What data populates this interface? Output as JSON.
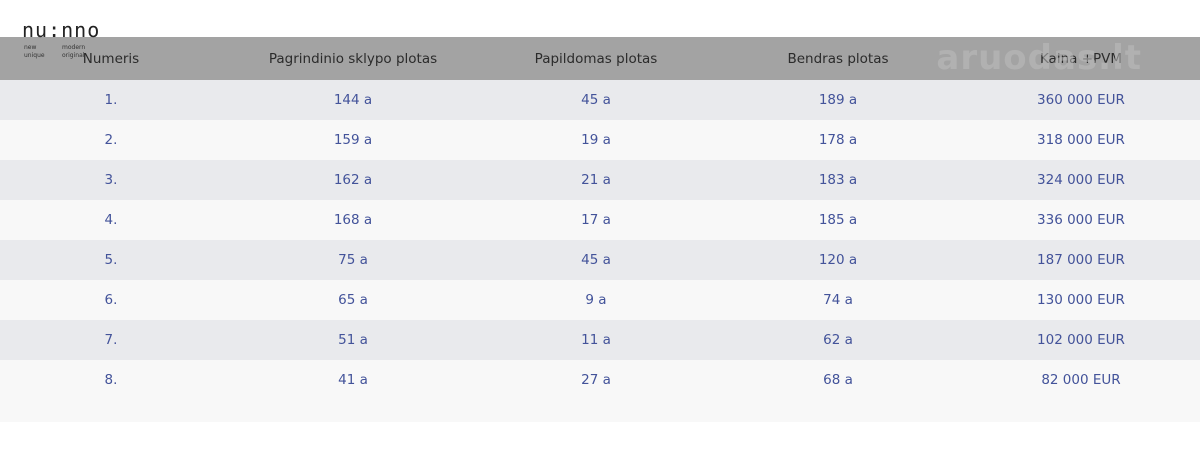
{
  "logo": {
    "mark": "nu:nno",
    "words": [
      "new",
      "unique",
      "modern",
      "original"
    ]
  },
  "watermark": "aruodas.lt",
  "table": {
    "header": [
      "Numeris",
      "Pagrindinio sklypo plotas",
      "Papildomas plotas",
      "Bendras plotas",
      "Kaina +PVM"
    ],
    "rows": [
      [
        "1.",
        "144 a",
        "45 a",
        "189 a",
        "360 000 EUR"
      ],
      [
        "2.",
        "159 a",
        "19 a",
        "178 a",
        "318 000 EUR"
      ],
      [
        "3.",
        "162 a",
        "21 a",
        "183 a",
        "324 000 EUR"
      ],
      [
        "4.",
        "168 a",
        "17 a",
        "185 a",
        "336 000 EUR"
      ],
      [
        "5.",
        "75 a",
        "45 a",
        "120 a",
        "187 000 EUR"
      ],
      [
        "6.",
        "65 a",
        "9 a",
        "74 a",
        "130 000 EUR"
      ],
      [
        "7.",
        "51 a",
        "11 a",
        "62 a",
        "102 000 EUR"
      ],
      [
        "8.",
        "41 a",
        "27 a",
        "68 a",
        "82 000 EUR"
      ]
    ]
  }
}
